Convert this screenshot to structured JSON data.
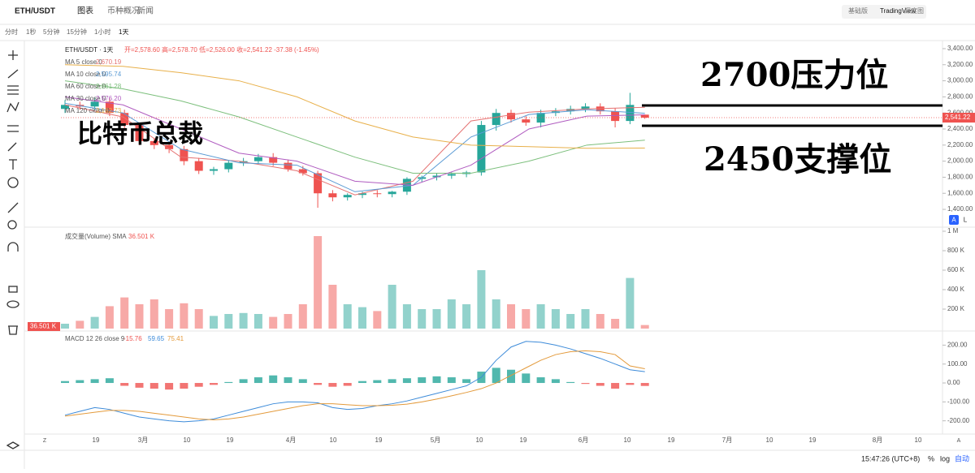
{
  "header": {
    "symbol": "ETH/USDT",
    "tabs": [
      "图表",
      "币种概况",
      "新闻"
    ],
    "views": [
      "基础版",
      "TradingView",
      "深度图"
    ]
  },
  "toolbar": {
    "intervals": [
      "分时",
      "1秒",
      "5分钟",
      "15分钟",
      "1小时",
      "1天"
    ]
  },
  "legend": {
    "title": "ETH/USDT · 1天",
    "ohlc": "开=2,578.60 高=2,578.70 低=2,526.00 收=2,541.22 -37.38 (-1.45%)",
    "ma": [
      {
        "name": "MA 5 close 0",
        "value": "2,670.19",
        "color": "#e57373",
        "values": [
          2700,
          2550,
          2050,
          2000,
          1880,
          1580,
          1750,
          2500,
          2610,
          2650,
          2670.19
        ]
      },
      {
        "name": "MA 10 close 0",
        "value": "2,595.74",
        "color": "#5b9bd5",
        "values": [
          2720,
          2600,
          2150,
          1980,
          1950,
          1620,
          1700,
          2300,
          2580,
          2640,
          2595.74
        ]
      },
      {
        "name": "MA 60 close 0",
        "value": "2,261.28",
        "color": "#7cbf7c",
        "values": [
          3000,
          2900,
          2750,
          2550,
          2300,
          2050,
          1850,
          1850,
          2000,
          2200,
          2261.28
        ]
      },
      {
        "name": "MA 30 close 0",
        "value": "2,576.20",
        "color": "#b05cc0",
        "values": [
          2800,
          2700,
          2400,
          2100,
          2000,
          1750,
          1700,
          1950,
          2400,
          2560,
          2576.2
        ]
      },
      {
        "name": "MA 120 close 0",
        "value": "2,162.73",
        "color": "#e8b04a",
        "values": [
          3200,
          3180,
          3100,
          3000,
          2800,
          2500,
          2300,
          2200,
          2180,
          2160,
          2162.73
        ]
      }
    ]
  },
  "annotations": [
    "比特币总裁",
    "2700压力位",
    "2450支撑位"
  ],
  "candles": {
    "up_color": "#26a69a",
    "down_color": "#ef5350",
    "open": [
      2650,
      2700,
      2680,
      2740,
      2600,
      2450,
      2250,
      2200,
      2150,
      2000,
      1880,
      1900,
      1980,
      2000,
      2050,
      1980,
      1900,
      1850,
      1600,
      1550,
      1580,
      1600,
      1590,
      1620,
      1780,
      1800,
      1820,
      1840,
      1860,
      2450,
      2600,
      2520,
      2480,
      2600,
      2620,
      2650,
      2680,
      2620,
      2500,
      2578.6
    ],
    "high": [
      2760,
      2740,
      2790,
      2780,
      2640,
      2480,
      2290,
      2240,
      2190,
      2040,
      1930,
      2010,
      2040,
      2090,
      2100,
      2020,
      1940,
      1880,
      1640,
      1600,
      1620,
      1640,
      1630,
      1800,
      1820,
      1850,
      1860,
      1880,
      2500,
      2650,
      2640,
      2560,
      2640,
      2660,
      2690,
      2720,
      2720,
      2660,
      2850,
      2578.7
    ],
    "low": [
      2600,
      2640,
      2630,
      2560,
      2410,
      2200,
      2150,
      2100,
      1950,
      1840,
      1830,
      1860,
      1940,
      1960,
      1940,
      1870,
      1820,
      1420,
      1500,
      1510,
      1540,
      1550,
      1550,
      1580,
      1740,
      1760,
      1780,
      1800,
      1820,
      2380,
      2480,
      2440,
      2420,
      2560,
      2580,
      2610,
      2580,
      2420,
      2460,
      2526
    ],
    "close": [
      2700,
      2680,
      2740,
      2600,
      2450,
      2250,
      2200,
      2150,
      2000,
      1880,
      1900,
      1980,
      2000,
      2050,
      1980,
      1900,
      1850,
      1600,
      1550,
      1580,
      1600,
      1590,
      1620,
      1780,
      1800,
      1820,
      1840,
      1860,
      2450,
      2600,
      2520,
      2480,
      2600,
      2620,
      2650,
      2680,
      2620,
      2500,
      2700,
      2541.22
    ]
  },
  "price_axis": {
    "ylim": [
      1330,
      3450
    ],
    "last": "2,541.22",
    "yticks": [
      {
        "value": 3400,
        "label": "3,400.00"
      },
      {
        "value": 3200,
        "label": "3,200.00"
      },
      {
        "value": 3000,
        "label": "3,000.00"
      },
      {
        "value": 2800,
        "label": "2,800.00"
      },
      {
        "value": 2600,
        "label": "2,600.00"
      },
      {
        "value": 2400,
        "label": "2,400.00"
      },
      {
        "value": 2200,
        "label": "2,200.00"
      },
      {
        "value": 2000,
        "label": "2,000.00"
      },
      {
        "value": 1800,
        "label": "1,800.00"
      },
      {
        "value": 1600,
        "label": "1,600.00"
      },
      {
        "value": 1400,
        "label": "1,400.00"
      }
    ]
  },
  "volume": {
    "legend": "成交量(Volume) SMA",
    "sma": "36.501 K",
    "last": "36.501 K",
    "ylim": [
      0,
      1000000
    ],
    "yticks": [
      {
        "value": 1000000,
        "label": "1 M"
      },
      {
        "value": 800000,
        "label": "800 K"
      },
      {
        "value": 600000,
        "label": "600 K"
      },
      {
        "value": 400000,
        "label": "400 K"
      },
      {
        "value": 200000,
        "label": "200 K"
      }
    ],
    "values": [
      50000,
      80000,
      120000,
      230000,
      320000,
      250000,
      300000,
      200000,
      260000,
      200000,
      130000,
      150000,
      160000,
      150000,
      120000,
      150000,
      250000,
      950000,
      450000,
      250000,
      220000,
      180000,
      450000,
      250000,
      200000,
      200000,
      300000,
      250000,
      600000,
      300000,
      250000,
      200000,
      250000,
      200000,
      150000,
      200000,
      150000,
      100000,
      520000,
      36501
    ]
  },
  "macd": {
    "legend": "MACD 12 26 close 9",
    "hist_label": "-15.76",
    "macd_label": "59.65",
    "signal_label": "75.41",
    "ylim": [
      -270,
      266
    ],
    "yticks": [
      {
        "value": 200,
        "label": "200.00"
      },
      {
        "value": 100,
        "label": "100.00"
      },
      {
        "value": 0,
        "label": "0.00"
      },
      {
        "value": -100,
        "label": "-100.00"
      },
      {
        "value": -200,
        "label": "-200.00"
      }
    ],
    "hist": [
      10,
      15,
      20,
      25,
      -15,
      -25,
      -30,
      -35,
      -30,
      -20,
      -10,
      5,
      20,
      30,
      40,
      30,
      20,
      -10,
      -20,
      -15,
      10,
      15,
      20,
      25,
      30,
      35,
      30,
      20,
      60,
      80,
      70,
      50,
      30,
      20,
      5,
      -5,
      -15,
      -30,
      -10,
      -15.76
    ],
    "macd": [
      -170,
      -150,
      -130,
      -140,
      -160,
      -180,
      -190,
      -200,
      -205,
      -200,
      -190,
      -170,
      -150,
      -130,
      -110,
      -100,
      -100,
      -105,
      -130,
      -140,
      -135,
      -120,
      -110,
      -95,
      -75,
      -55,
      -35,
      -15,
      30,
      120,
      190,
      220,
      215,
      200,
      180,
      155,
      130,
      100,
      70,
      59.65
    ],
    "signal": [
      -175,
      -165,
      -155,
      -145,
      -145,
      -150,
      -160,
      -170,
      -180,
      -190,
      -195,
      -190,
      -180,
      -165,
      -150,
      -135,
      -120,
      -110,
      -110,
      -115,
      -120,
      -120,
      -118,
      -112,
      -100,
      -85,
      -68,
      -50,
      -30,
      0,
      40,
      80,
      120,
      150,
      165,
      170,
      165,
      150,
      90,
      75.41
    ]
  },
  "dates": [
    "19",
    "3月",
    "10",
    "19",
    "4月",
    "10",
    "19",
    "5月",
    "10",
    "19",
    "6月",
    "10",
    "19",
    "7月",
    "10",
    "19",
    "8月",
    "10"
  ],
  "scale_buttons": [
    "A",
    "L"
  ],
  "footer": {
    "left": "Z",
    "right": "A",
    "time": "15:47:26 (UTC+8)",
    "percent": "%",
    "log": "log",
    "auto": "自动"
  }
}
